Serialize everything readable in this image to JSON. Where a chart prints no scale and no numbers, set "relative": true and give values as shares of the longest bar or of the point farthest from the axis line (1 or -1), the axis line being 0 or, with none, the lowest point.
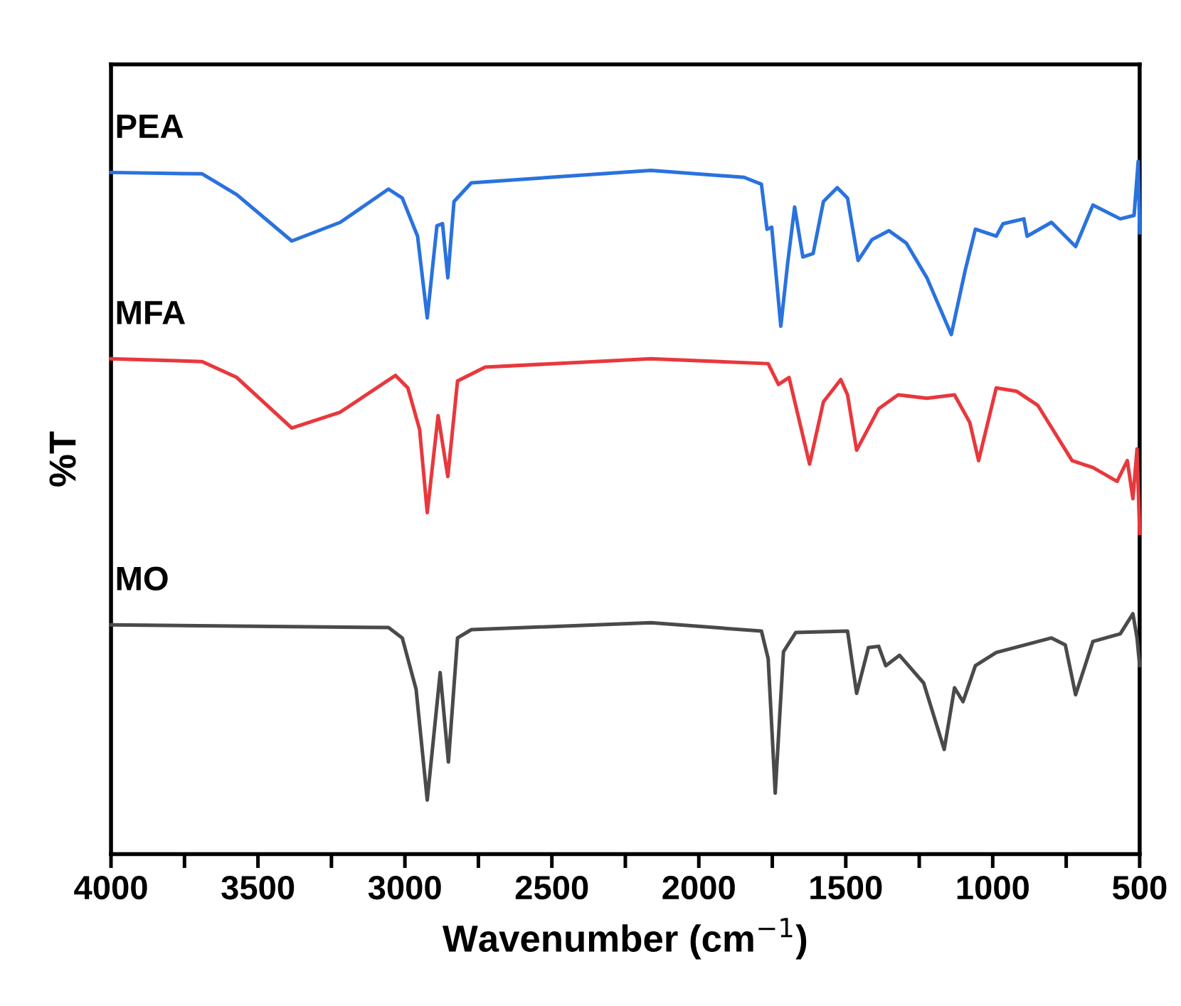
{
  "chart_data": {
    "type": "line",
    "relative": true,
    "xlabel": "Wavenumber (cm$^{−1}$)",
    "ylabel": "%T",
    "xlim": [
      4000,
      500
    ],
    "xticks": [
      4000,
      {
        "value": 3750,
        "label": null
      },
      3500,
      {
        "value": 3250,
        "label": null
      },
      3000,
      {
        "value": 2750,
        "label": null
      },
      2500,
      {
        "value": 2250,
        "label": null
      },
      2000,
      {
        "value": 1750,
        "label": null
      },
      1500,
      {
        "value": 1250,
        "label": null
      },
      1000,
      {
        "value": 750,
        "label": null
      },
      500
    ],
    "tick_labels": "x",
    "grid": false,
    "legend": false,
    "marker": "none",
    "line_style": "solid",
    "series": [
      {
        "name": "PEA",
        "color": "#2a72de",
        "x": [
          4000,
          3690,
          3572,
          3385,
          3220,
          3056,
          3009,
          2957,
          2924,
          2891,
          2872,
          2854,
          2833,
          2774,
          2163,
          1846,
          1787,
          1768,
          1752,
          1721,
          1698,
          1674,
          1646,
          1611,
          1576,
          1529,
          1494,
          1458,
          1411,
          1353,
          1294,
          1224,
          1141,
          1094,
          1059,
          988,
          965,
          894,
          883,
          800,
          718,
          659,
          566,
          519,
          505,
          500
        ],
        "values": [
          0.984,
          0.982,
          0.952,
          0.885,
          0.912,
          0.96,
          0.947,
          0.892,
          0.774,
          0.907,
          0.91,
          0.832,
          0.942,
          0.969,
          0.987,
          0.977,
          0.967,
          0.902,
          0.905,
          0.762,
          0.852,
          0.934,
          0.862,
          0.867,
          0.942,
          0.962,
          0.947,
          0.857,
          0.887,
          0.9,
          0.882,
          0.832,
          0.75,
          0.842,
          0.902,
          0.892,
          0.91,
          0.917,
          0.892,
          0.912,
          0.877,
          0.937,
          0.917,
          0.922,
          1.0,
          0.897
        ]
      },
      {
        "name": "MFA",
        "color": "#e8383d",
        "x": [
          4000,
          3690,
          3572,
          3385,
          3220,
          3032,
          2990,
          2950,
          2924,
          2887,
          2854,
          2821,
          2727,
          2163,
          1764,
          1729,
          1693,
          1623,
          1576,
          1517,
          1494,
          1463,
          1388,
          1322,
          1224,
          1130,
          1078,
          1048,
          988,
          918,
          847,
          730,
          659,
          577,
          542,
          523,
          509,
          500
        ],
        "values": [
          0.715,
          0.711,
          0.688,
          0.615,
          0.638,
          0.691,
          0.673,
          0.613,
          0.493,
          0.633,
          0.545,
          0.683,
          0.703,
          0.715,
          0.708,
          0.678,
          0.688,
          0.563,
          0.653,
          0.685,
          0.663,
          0.583,
          0.643,
          0.663,
          0.658,
          0.663,
          0.623,
          0.568,
          0.673,
          0.668,
          0.648,
          0.568,
          0.558,
          0.538,
          0.568,
          0.513,
          0.585,
          0.463
        ]
      },
      {
        "name": "MO",
        "color": "#4a4a4a",
        "x": [
          4000,
          3056,
          3009,
          2962,
          2924,
          2880,
          2852,
          2821,
          2774,
          2163,
          1787,
          1764,
          1740,
          1712,
          1670,
          1494,
          1463,
          1423,
          1388,
          1364,
          1317,
          1235,
          1165,
          1130,
          1101,
          1059,
          988,
          800,
          753,
          718,
          659,
          566,
          523,
          509,
          500
        ],
        "values": [
          0.331,
          0.327,
          0.312,
          0.238,
          0.078,
          0.262,
          0.133,
          0.312,
          0.324,
          0.334,
          0.322,
          0.282,
          0.088,
          0.292,
          0.32,
          0.322,
          0.232,
          0.298,
          0.3,
          0.272,
          0.287,
          0.247,
          0.151,
          0.24,
          0.22,
          0.272,
          0.291,
          0.312,
          0.302,
          0.23,
          0.307,
          0.318,
          0.347,
          0.312,
          0.272
        ]
      }
    ]
  }
}
